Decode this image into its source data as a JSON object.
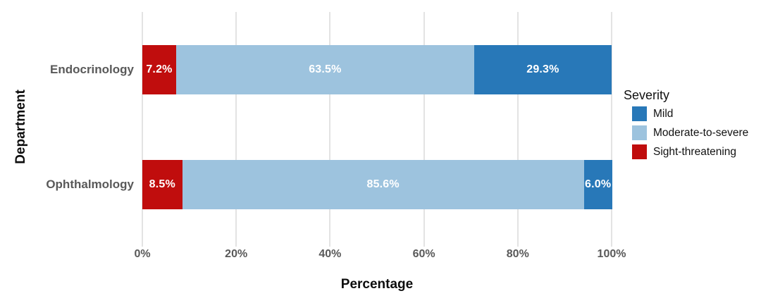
{
  "chart_data": {
    "type": "bar",
    "orientation": "horizontal",
    "stacked": true,
    "title": "",
    "xlabel": "Percentage",
    "ylabel": "Department",
    "xlim": [
      0,
      100
    ],
    "x_ticks": [
      "0%",
      "20%",
      "40%",
      "60%",
      "80%",
      "100%"
    ],
    "grid": "vertical",
    "categories": [
      "Endocrinology",
      "Ophthalmology"
    ],
    "series": [
      {
        "name": "Mild",
        "color": "#2878b8",
        "values": [
          29.3,
          6.0
        ]
      },
      {
        "name": "Moderate-to-severe",
        "color": "#9dc3de",
        "values": [
          63.5,
          85.6
        ]
      },
      {
        "name": "Sight-threatening",
        "color": "#c00d0d",
        "values": [
          7.2,
          8.5
        ]
      }
    ],
    "segment_draw_order": [
      "Sight-threatening",
      "Moderate-to-severe",
      "Mild"
    ],
    "bars": [
      {
        "category": "Endocrinology",
        "segments": [
          {
            "series": "Sight-threatening",
            "value": 7.2,
            "label": "7.2%"
          },
          {
            "series": "Moderate-to-severe",
            "value": 63.5,
            "label": "63.5%"
          },
          {
            "series": "Mild",
            "value": 29.3,
            "label": "29.3%"
          }
        ]
      },
      {
        "category": "Ophthalmology",
        "segments": [
          {
            "series": "Sight-threatening",
            "value": 8.5,
            "label": "8.5%"
          },
          {
            "series": "Moderate-to-severe",
            "value": 85.6,
            "label": "85.6%"
          },
          {
            "series": "Mild",
            "value": 6.0,
            "label": "6.0%"
          }
        ]
      }
    ],
    "legend": {
      "title": "Severity",
      "position": "right",
      "items": [
        {
          "label": "Mild",
          "color": "#2878b8"
        },
        {
          "label": "Moderate-to-severe",
          "color": "#9dc3de"
        },
        {
          "label": "Sight-threatening",
          "color": "#c00d0d"
        }
      ]
    },
    "colors": {
      "gridline": "#e3e3e3",
      "tick_text": "#595959",
      "category_text": "#595959",
      "axis_title_text": "#0d0d0d",
      "segment_label_text": "#ffffff"
    }
  }
}
